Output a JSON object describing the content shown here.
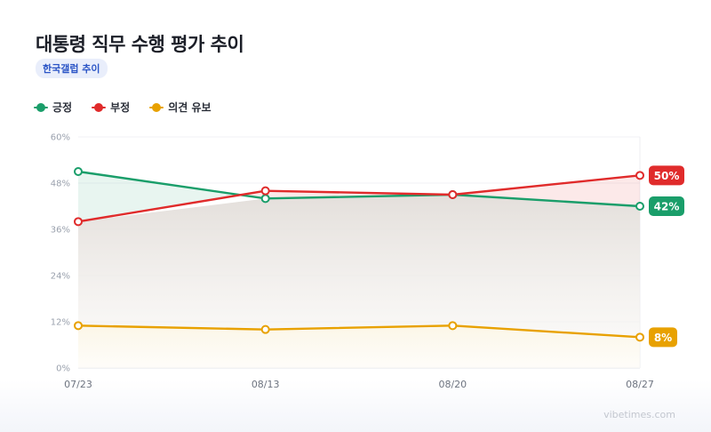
{
  "title": "대통령 직무 수행 평가 추이",
  "source_badge": "한국갤럽 추이",
  "watermark": "vibetimes.com",
  "colors": {
    "positive": "#1a9e6a",
    "negative": "#e02b2b",
    "undecided": "#e8a100"
  },
  "chart_data": {
    "type": "line",
    "x": [
      "07/23",
      "08/13",
      "08/20",
      "08/27"
    ],
    "y_ticks": [
      "60%",
      "48%",
      "36%",
      "24%",
      "12%",
      "0%"
    ],
    "ylim": [
      0,
      60
    ],
    "grid": true,
    "legend_position": "top-left",
    "series": [
      {
        "key": "positive",
        "name": "긍정",
        "color": "#1a9e6a",
        "values": [
          51,
          44,
          45,
          42
        ],
        "end_label": "42%"
      },
      {
        "key": "negative",
        "name": "부정",
        "color": "#e02b2b",
        "values": [
          38,
          46,
          45,
          50
        ],
        "end_label": "50%"
      },
      {
        "key": "undecided",
        "name": "의견 유보",
        "color": "#e8a100",
        "values": [
          11,
          10,
          11,
          8
        ],
        "end_label": "8%"
      }
    ]
  }
}
